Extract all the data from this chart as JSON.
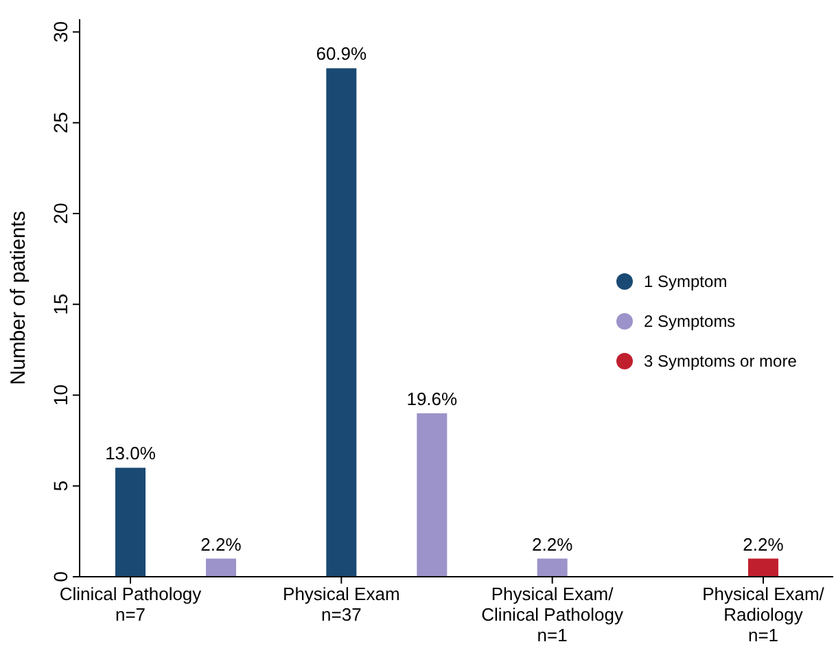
{
  "chart_data": {
    "type": "bar",
    "ylabel": "Number of patients",
    "categories": [
      "Clinical Pathology\nn=7",
      "Physical Exam\nn=37",
      "Physical Exam/\nClinical Pathology\nn=1",
      "Physical Exam/\nRadiology\nn=1"
    ],
    "series": [
      {
        "name": "1 Symptom",
        "color": "#1a4a73",
        "values": [
          6,
          28,
          null,
          null
        ]
      },
      {
        "name": "2 Symptoms",
        "color": "#9b93c9",
        "values": [
          1,
          9,
          1,
          null
        ]
      },
      {
        "name": "3 Symptoms or more",
        "color": "#c0202e",
        "values": [
          null,
          null,
          null,
          1
        ]
      }
    ],
    "annotations": [
      {
        "text": "13.0%",
        "x": "Clinical Pathology\nn=7",
        "y": 6
      },
      "2.2%",
      {
        "text": "60.9%",
        "x": "Physical Exam\nn=37",
        "y": 28
      },
      "19.6%",
      {
        "text": "2.2%",
        "x": "Physical Exam/\nClinical Pathology\nn=1",
        "y": 1
      },
      {
        "text": "2.2%",
        "x": "Physical Exam/\nRadiology\nn=1",
        "y": 1
      }
    ],
    "ylim": [
      0,
      30.7
    ],
    "yticks": [
      0,
      5,
      10,
      15,
      20,
      25,
      30
    ],
    "grid": false,
    "legend": "right",
    "marker": "circle"
  }
}
